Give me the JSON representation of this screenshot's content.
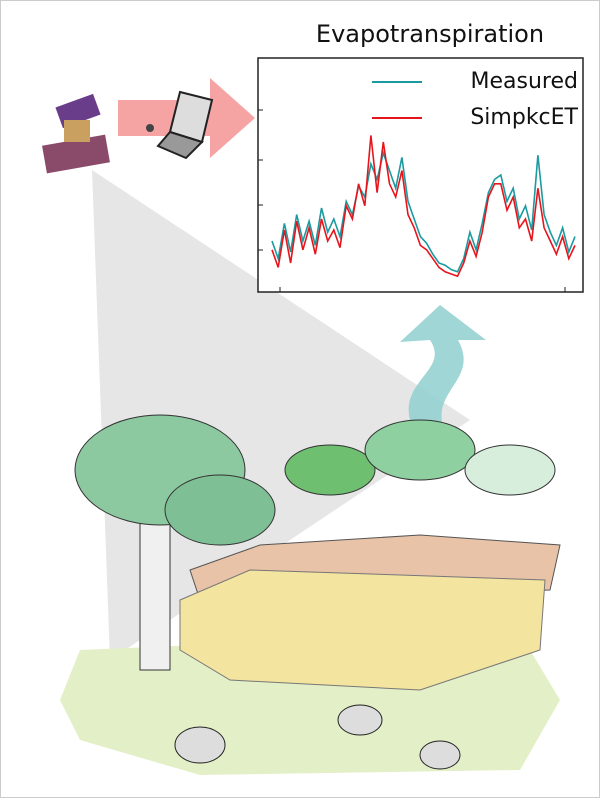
{
  "chart_data": {
    "type": "line",
    "title": "Evapotranspiration",
    "ylim": [
      0,
      10
    ],
    "series": [
      {
        "name": "Measured",
        "color": "#1b9aa0",
        "values": [
          2.0,
          1.2,
          2.8,
          1.5,
          3.2,
          2.0,
          2.9,
          1.8,
          3.5,
          2.4,
          3.0,
          2.2,
          3.8,
          3.2,
          4.5,
          4.0,
          5.5,
          4.8,
          6.0,
          5.2,
          4.4,
          5.8,
          3.8,
          3.0,
          2.2,
          1.9,
          1.4,
          1.0,
          0.9,
          0.7,
          0.6,
          1.2,
          2.4,
          1.6,
          2.8,
          4.2,
          4.8,
          5.0,
          3.8,
          4.4,
          3.0,
          3.6,
          2.5,
          5.9,
          3.2,
          2.4,
          1.8,
          2.6,
          1.5,
          2.2
        ]
      },
      {
        "name": "SimpkcET",
        "color": "#e8141c",
        "values": [
          1.6,
          0.8,
          2.5,
          1.0,
          2.9,
          1.6,
          2.6,
          1.4,
          3.0,
          2.0,
          2.5,
          1.7,
          3.6,
          3.0,
          4.6,
          3.6,
          6.8,
          4.2,
          6.5,
          4.6,
          4.0,
          5.2,
          3.2,
          2.6,
          1.8,
          1.6,
          1.2,
          0.8,
          0.6,
          0.5,
          0.4,
          1.0,
          2.0,
          1.3,
          2.4,
          4.0,
          4.6,
          4.6,
          3.4,
          4.0,
          2.6,
          3.0,
          2.0,
          4.4,
          2.6,
          2.0,
          1.4,
          2.2,
          1.2,
          1.8
        ]
      }
    ]
  }
}
